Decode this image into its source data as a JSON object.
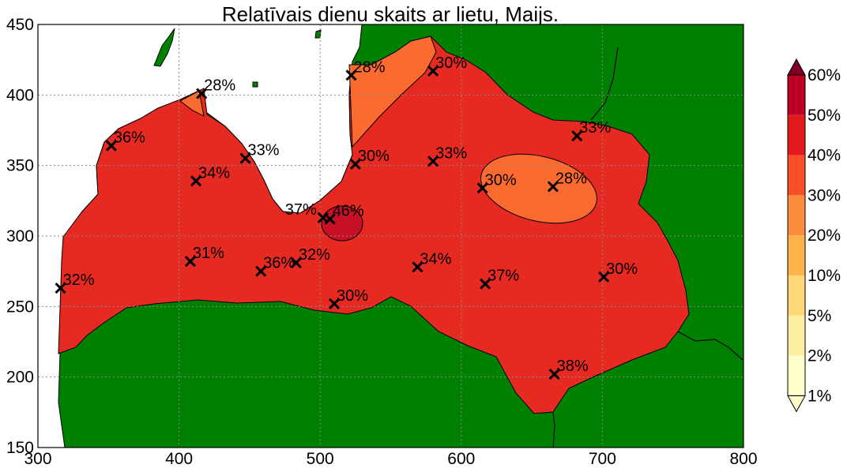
{
  "title": "Relatīvais dienu skaits ar lietu, Maijs.",
  "axes": {
    "x_ticks": [
      300,
      400,
      500,
      600,
      700,
      800
    ],
    "y_ticks": [
      150,
      200,
      250,
      300,
      350,
      400,
      450
    ],
    "xlim": [
      300,
      800
    ],
    "ylim": [
      150,
      450
    ],
    "grid": true
  },
  "colors": {
    "land_outside": "#008000",
    "sea": "#ffffff",
    "region_30_40": "#e62a22",
    "region_20_30": "#fb6a2f",
    "region_40_50": "#c70f26",
    "marker": "#000000"
  },
  "colorbar": {
    "labels": [
      "60%",
      "50%",
      "40%",
      "30%",
      "20%",
      "10%",
      "5%",
      "2%",
      "1%"
    ],
    "colors": [
      "#800026",
      "#bd0026",
      "#e31a1c",
      "#fc4e2a",
      "#fd8d3c",
      "#feb24c",
      "#fed976",
      "#ffeda0",
      "#ffffcc"
    ]
  },
  "chart_data": {
    "type": "map",
    "title": "Relatīvais dienu skaits ar lietu, Maijs.",
    "stations": [
      {
        "x": 416,
        "y": 401,
        "label": "28%"
      },
      {
        "x": 522,
        "y": 414,
        "label": "28%"
      },
      {
        "x": 580,
        "y": 417,
        "label": "30%"
      },
      {
        "x": 352,
        "y": 364,
        "label": "36%"
      },
      {
        "x": 447,
        "y": 355,
        "label": "33%"
      },
      {
        "x": 412,
        "y": 339,
        "label": "34%"
      },
      {
        "x": 525,
        "y": 351,
        "label": "30%"
      },
      {
        "x": 580,
        "y": 353,
        "label": "33%"
      },
      {
        "x": 682,
        "y": 371,
        "label": "33%"
      },
      {
        "x": 615,
        "y": 334,
        "label": "30%"
      },
      {
        "x": 665,
        "y": 335,
        "label": "28%"
      },
      {
        "x": 502,
        "y": 313,
        "label": "37%"
      },
      {
        "x": 507,
        "y": 312,
        "label": "46%"
      },
      {
        "x": 408,
        "y": 282,
        "label": "31%"
      },
      {
        "x": 458,
        "y": 275,
        "label": "36%"
      },
      {
        "x": 483,
        "y": 281,
        "label": "32%"
      },
      {
        "x": 569,
        "y": 278,
        "label": "34%"
      },
      {
        "x": 617,
        "y": 266,
        "label": "37%"
      },
      {
        "x": 701,
        "y": 271,
        "label": "30%"
      },
      {
        "x": 316,
        "y": 263,
        "label": "32%"
      },
      {
        "x": 510,
        "y": 252,
        "label": "30%"
      },
      {
        "x": 666,
        "y": 202,
        "label": "38%"
      }
    ]
  }
}
